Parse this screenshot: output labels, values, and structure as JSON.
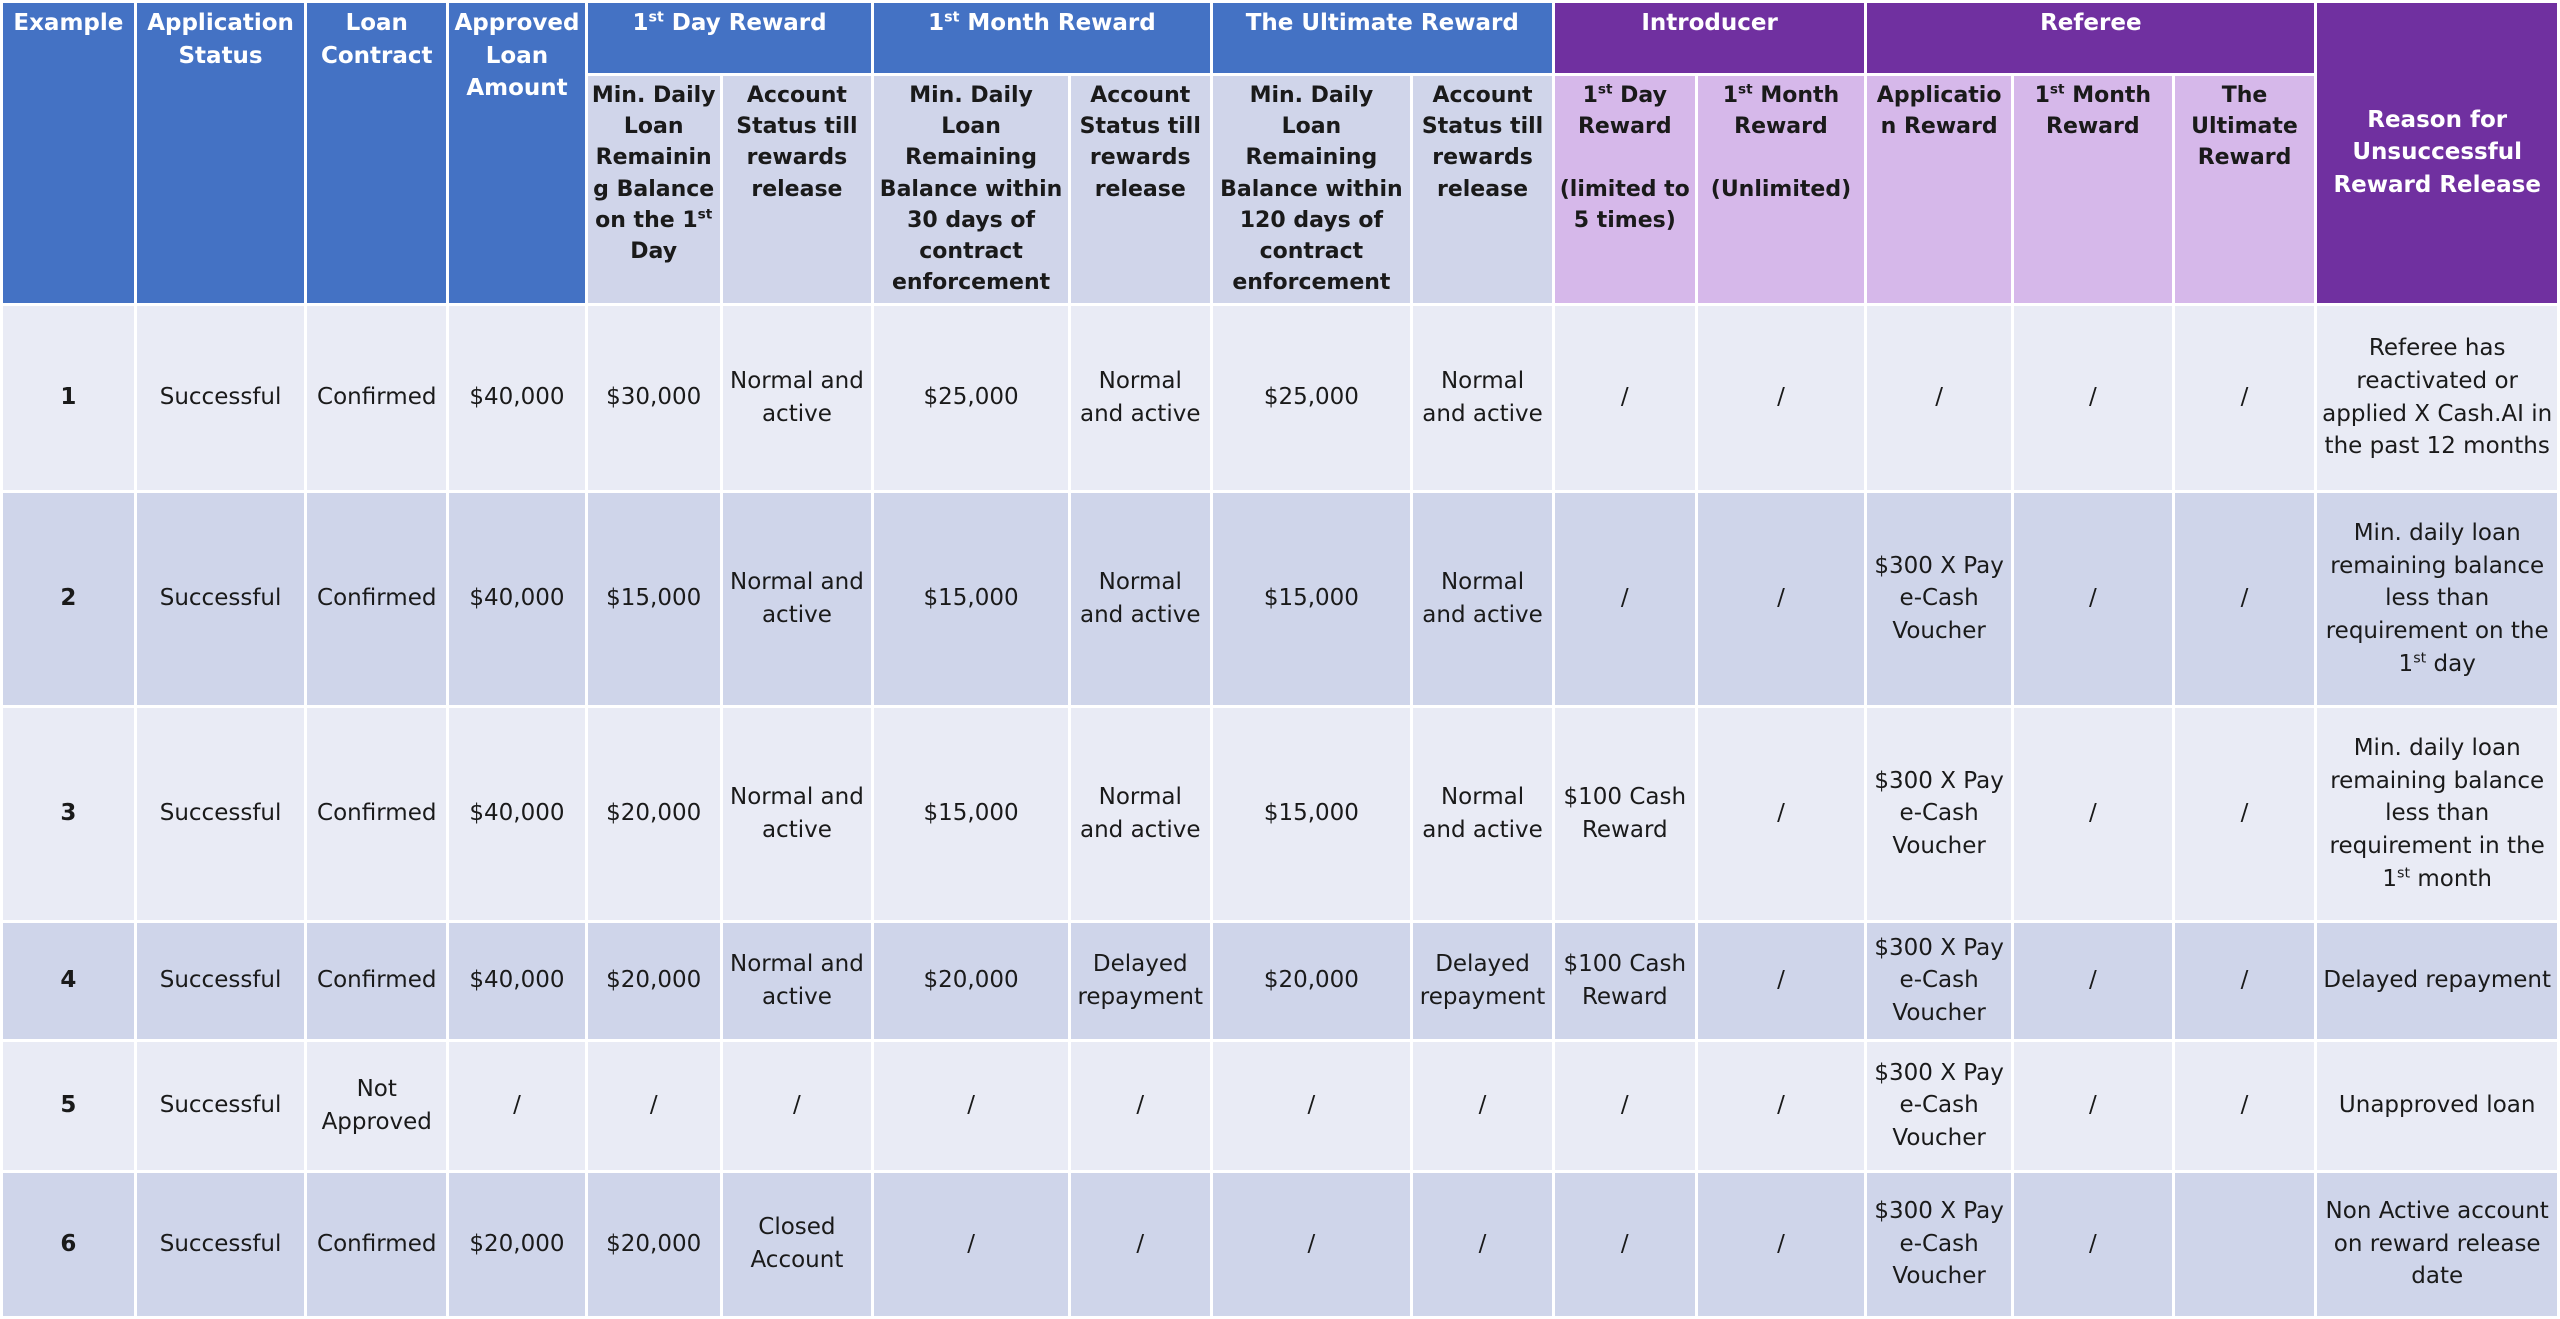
{
  "table": {
    "header_groups": [
      "Example",
      "Application Status",
      "Loan Contract",
      "Approved Loan Amount",
      "1st Day Reward",
      "1st Month Reward",
      "The Ultimate Reward",
      "Introducer",
      "Referee",
      "Reason for Unsuccessful Reward Release"
    ],
    "subheaders": [
      "Min. Daily Loan Remaining Balance on the 1st Day",
      "Account Status till rewards release",
      "Min. Daily Loan Remaining Balance within 30 days of contract enforcement",
      "Account Status till rewards release",
      "Min. Daily Loan Remaining Balance within 120 days of contract enforcement",
      "Account Status till rewards release",
      "1st Day Reward\n\n(limited to 5 times)",
      "1st Month Reward\n\n(Unlimited)",
      "Application Reward",
      "1st Month Reward",
      "The Ultimate Reward"
    ],
    "rows": [
      [
        "1",
        "Successful",
        "Confirmed",
        "$40,000",
        "$30,000",
        "Normal and active",
        "$25,000",
        "Normal and active",
        "$25,000",
        "Normal and active",
        "/",
        "/",
        "/",
        "/",
        "/",
        "Referee has reactivated or applied X Cash.AI in the past 12 months"
      ],
      [
        "2",
        "Successful",
        "Confirmed",
        "$40,000",
        "$15,000",
        "Normal and active",
        "$15,000",
        "Normal and active",
        "$15,000",
        "Normal and active",
        "/",
        "/",
        "$300 X Pay e-Cash Voucher",
        "/",
        "/",
        "Min. daily loan remaining balance less than requirement on the 1st day"
      ],
      [
        "3",
        "Successful",
        "Confirmed",
        "$40,000",
        "$20,000",
        "Normal and active",
        "$15,000",
        "Normal and active",
        "$15,000",
        "Normal and active",
        "$100 Cash Reward",
        "/",
        "$300 X Pay e-Cash Voucher",
        "/",
        "/",
        "Min. daily loan remaining balance less than requirement in the 1st month"
      ],
      [
        "4",
        "Successful",
        "Confirmed",
        "$40,000",
        "$20,000",
        "Normal and active",
        "$20,000",
        "Delayed repayment",
        "$20,000",
        "Delayed repayment",
        "$100 Cash Reward",
        "/",
        "$300 X Pay e-Cash Voucher",
        "/",
        "/",
        "Delayed repayment"
      ],
      [
        "5",
        "Successful",
        "Not Approved",
        "/",
        "/",
        "/",
        "/",
        "/",
        "/",
        "/",
        "/",
        "/",
        "$300 X Pay e-Cash Voucher",
        "/",
        "/",
        "Unapproved loan"
      ],
      [
        "6",
        "Successful",
        "Confirmed",
        "$20,000",
        "$20,000",
        "Closed Account",
        "/",
        "/",
        "/",
        "/",
        "/",
        "/",
        "$300 X Pay e-Cash Voucher",
        "/",
        null,
        "Non Active account on reward release date"
      ]
    ]
  }
}
